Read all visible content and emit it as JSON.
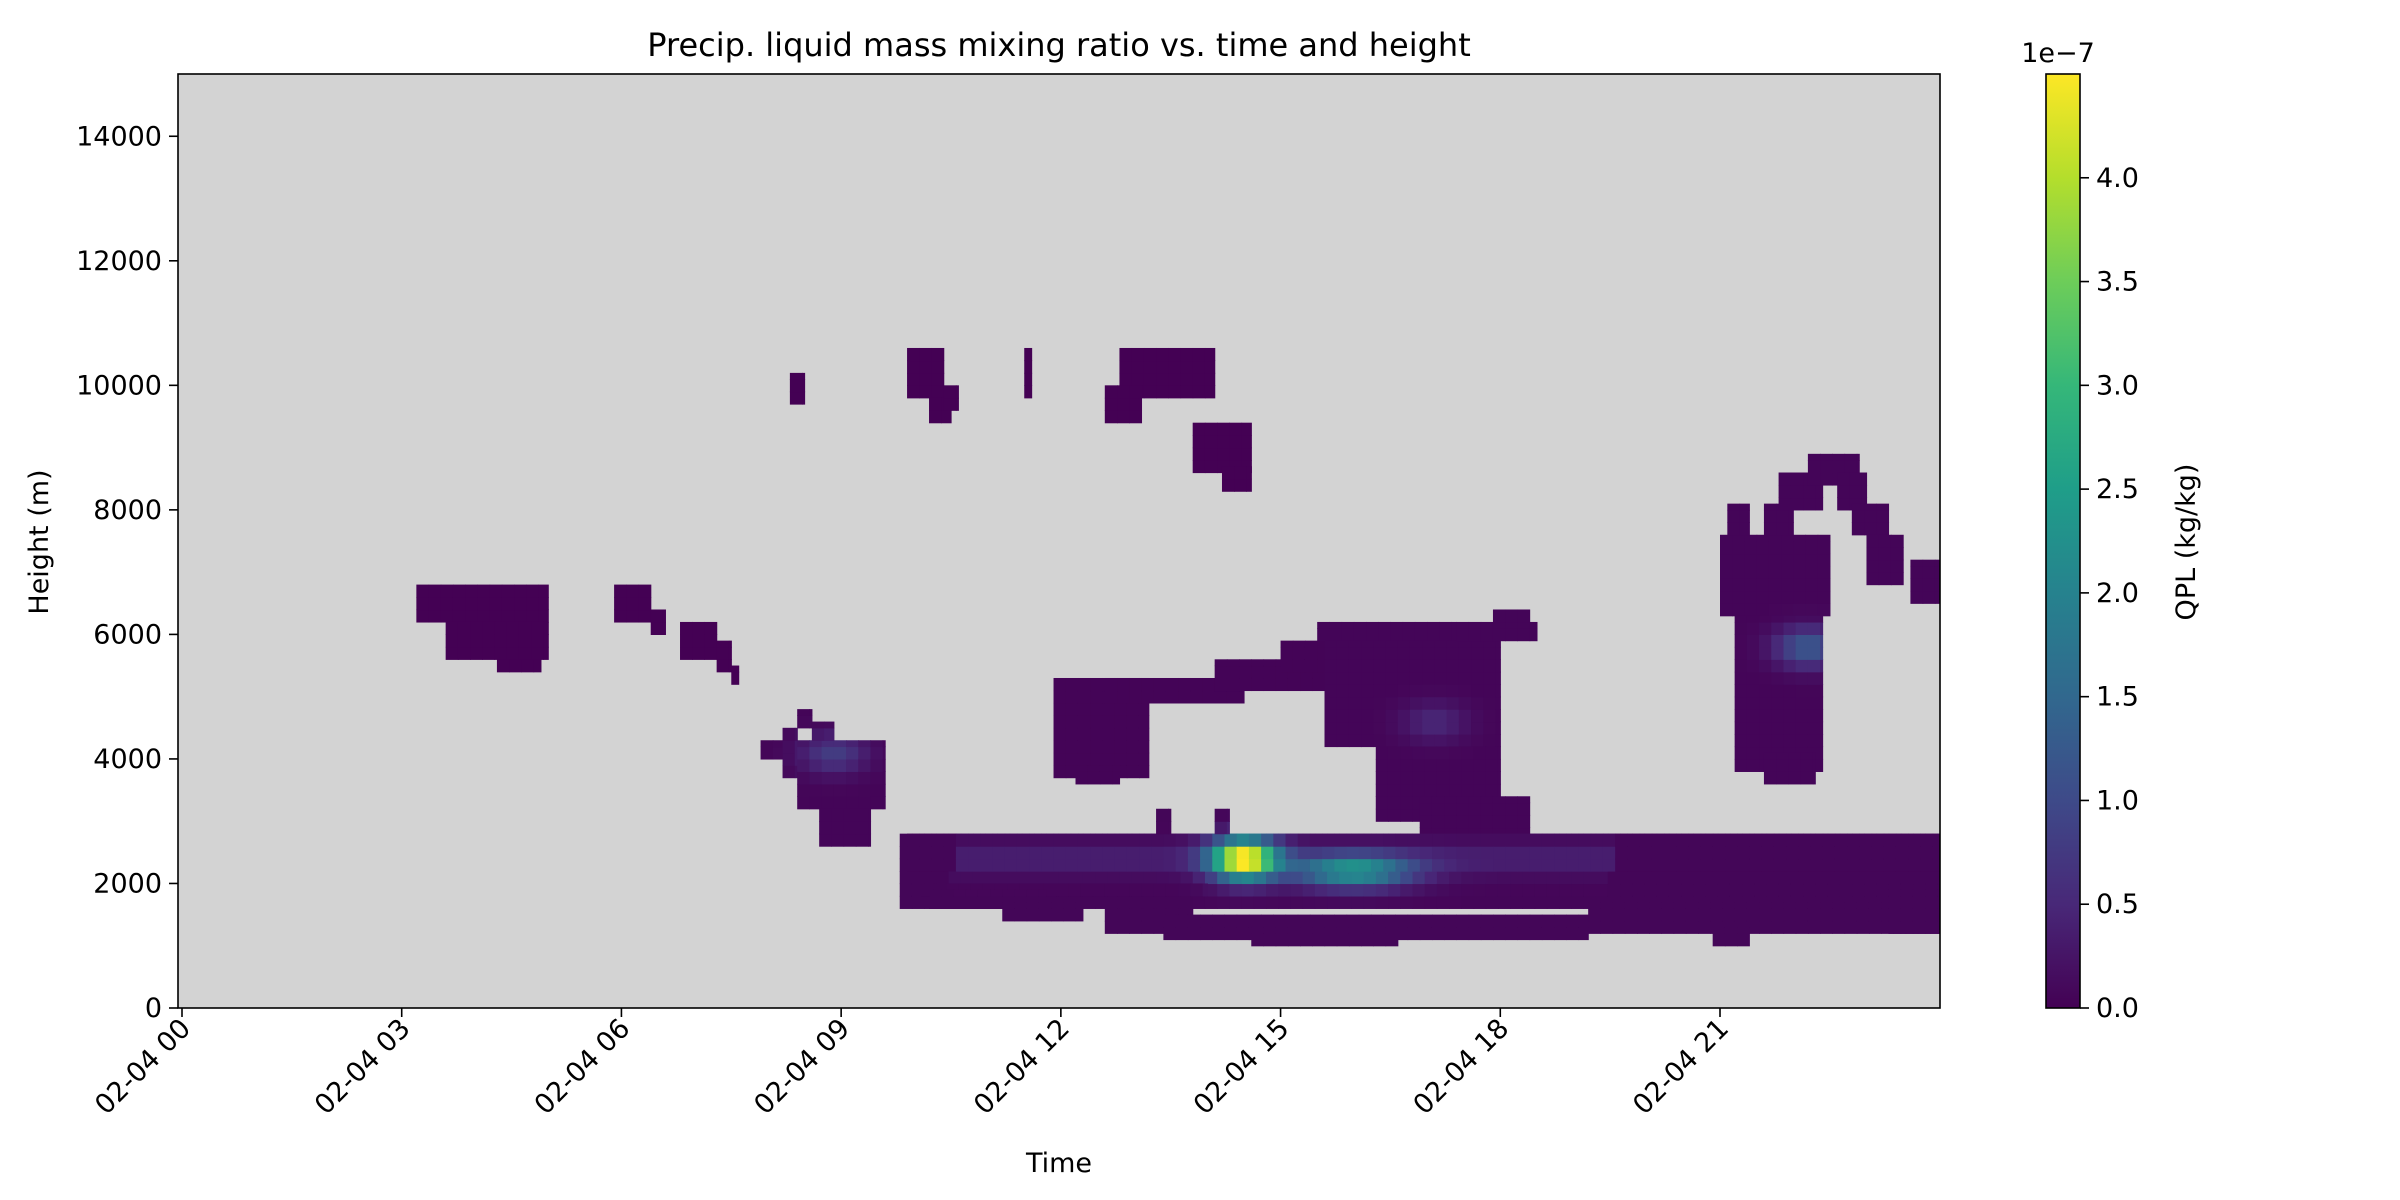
{
  "chart_data": {
    "type": "heatmap",
    "title": "Precip. liquid mass mixing ratio vs. time and height",
    "xlabel": "Time",
    "ylabel": "Height (m)",
    "x_ticks": [
      "02-04 00",
      "02-04 03",
      "02-04 06",
      "02-04 09",
      "02-04 12",
      "02-04 15",
      "02-04 18",
      "02-04 21"
    ],
    "x_range_hours": [
      0,
      24
    ],
    "y_ticks": [
      0,
      2000,
      4000,
      6000,
      8000,
      10000,
      12000,
      14000
    ],
    "ylim": [
      0,
      15000
    ],
    "background_color": "#d3d3d3",
    "colormap": "viridis",
    "colorbar": {
      "label": "QPL (kg/kg)",
      "multiplier": "1e−7",
      "ticks": [
        "0.0",
        "0.5",
        "1.0",
        "1.5",
        "2.0",
        "2.5",
        "3.0",
        "3.5",
        "4.0"
      ],
      "range": [
        0,
        4.5e-07
      ]
    },
    "cell_size": {
      "hours": 0.1667,
      "meters": 200
    },
    "regions": [
      {
        "name": "cloud-0330-6000m",
        "rects": [
          [
            3.2,
            5.0,
            6200,
            6800
          ],
          [
            3.6,
            5.0,
            5600,
            6200
          ],
          [
            4.3,
            4.9,
            5400,
            5600
          ]
        ],
        "base": 0.0
      },
      {
        "name": "cloud-0615-6300m",
        "rects": [
          [
            5.9,
            6.4,
            6200,
            6800
          ],
          [
            6.4,
            6.6,
            6000,
            6400
          ]
        ],
        "base": 0.0
      },
      {
        "name": "cloud-0700-5700m",
        "rects": [
          [
            6.8,
            7.3,
            5600,
            6200
          ],
          [
            7.3,
            7.5,
            5400,
            5900
          ],
          [
            7.5,
            7.6,
            5200,
            5500
          ]
        ],
        "base": 0.0
      },
      {
        "name": "cloud-0845-4000m",
        "rects": [
          [
            7.9,
            8.2,
            4000,
            4300
          ],
          [
            8.2,
            8.4,
            3700,
            4500
          ],
          [
            8.4,
            9.6,
            3200,
            4300
          ],
          [
            8.4,
            8.6,
            4500,
            4800
          ],
          [
            8.6,
            8.9,
            4300,
            4600
          ],
          [
            8.7,
            9.4,
            2600,
            3200
          ]
        ],
        "base": 0.05,
        "peak": {
          "t": 8.9,
          "z": 4100,
          "v": 0.75
        }
      },
      {
        "name": "cloud-1000-10000m",
        "rects": [
          [
            9.9,
            10.4,
            9800,
            10600
          ],
          [
            10.2,
            10.5,
            9400,
            9800
          ],
          [
            10.4,
            10.6,
            9600,
            10000
          ]
        ],
        "base": 0.0
      },
      {
        "name": "cloud-0835-9900m",
        "rects": [
          [
            8.3,
            8.5,
            9700,
            10200
          ]
        ],
        "base": 0.0
      },
      {
        "name": "cloud-1150-10000m",
        "rects": [
          [
            11.5,
            11.6,
            9800,
            10600
          ]
        ],
        "base": 0.0
      },
      {
        "name": "cloud-1300-10000m",
        "rects": [
          [
            12.8,
            14.1,
            9800,
            10600
          ],
          [
            12.6,
            13.1,
            9400,
            10000
          ]
        ],
        "base": 0.0
      },
      {
        "name": "cloud-1400-8800m",
        "rects": [
          [
            13.8,
            14.6,
            8600,
            9400
          ],
          [
            14.2,
            14.6,
            8300,
            8700
          ]
        ],
        "base": 0.0
      },
      {
        "name": "cloud-1230-4600m",
        "rects": [
          [
            11.9,
            13.2,
            3700,
            5300
          ],
          [
            12.2,
            12.8,
            3600,
            3900
          ],
          [
            12.6,
            14.5,
            4900,
            5300
          ],
          [
            14.1,
            16.0,
            5100,
            5600
          ],
          [
            15.0,
            16.6,
            5400,
            5900
          ]
        ],
        "base": 0.04
      },
      {
        "name": "cloud-1700-5000m",
        "rects": [
          [
            15.5,
            17.4,
            5900,
            6200
          ],
          [
            15.6,
            18.0,
            4200,
            5900
          ],
          [
            16.3,
            18.0,
            3000,
            4200
          ],
          [
            16.9,
            18.4,
            2700,
            3400
          ],
          [
            17.4,
            18.5,
            5900,
            6200
          ],
          [
            17.9,
            18.4,
            6200,
            6400
          ]
        ],
        "base": 0.05,
        "peak": {
          "t": 17.1,
          "z": 4600,
          "v": 0.45
        }
      },
      {
        "name": "cloud-2240-6500m",
        "rects": [
          [
            21.0,
            22.5,
            6300,
            7600
          ],
          [
            21.1,
            21.4,
            7600,
            8100
          ],
          [
            21.2,
            22.4,
            3800,
            6300
          ],
          [
            21.6,
            22.3,
            3600,
            4100
          ],
          [
            21.6,
            22.0,
            7600,
            8100
          ],
          [
            21.8,
            22.4,
            8000,
            8600
          ],
          [
            22.2,
            22.9,
            8400,
            8900
          ],
          [
            22.6,
            23.0,
            8000,
            8600
          ],
          [
            22.8,
            23.3,
            7600,
            8100
          ],
          [
            23.0,
            23.5,
            6800,
            7600
          ],
          [
            23.6,
            24.0,
            6500,
            7200
          ]
        ],
        "base": 0.05,
        "peak": {
          "t": 22.2,
          "z": 5800,
          "v": 1.2
        }
      },
      {
        "name": "precip-band-low",
        "rects": [
          [
            9.8,
            24.0,
            1600,
            2800
          ],
          [
            10.1,
            14.0,
            1800,
            2000
          ],
          [
            10.2,
            11.8,
            1600,
            1900
          ],
          [
            11.2,
            12.3,
            1400,
            1700
          ],
          [
            12.6,
            13.8,
            1200,
            1600
          ],
          [
            13.4,
            19.2,
            1100,
            1500
          ],
          [
            14.6,
            16.6,
            1000,
            1300
          ],
          [
            19.2,
            24.0,
            1200,
            1700
          ],
          [
            20.9,
            21.4,
            1000,
            1300
          ],
          [
            23.3,
            24.0,
            1200,
            1900
          ],
          [
            9.9,
            24.0,
            2200,
            2800
          ],
          [
            13.3,
            13.5,
            2800,
            3200
          ],
          [
            14.1,
            14.3,
            2800,
            3200
          ]
        ],
        "base": 0.06,
        "peak": {
          "t": 14.5,
          "z": 2400,
          "v": 4.5
        },
        "peak2": {
          "t": 16.0,
          "z": 2200,
          "v": 2.2
        }
      }
    ]
  }
}
